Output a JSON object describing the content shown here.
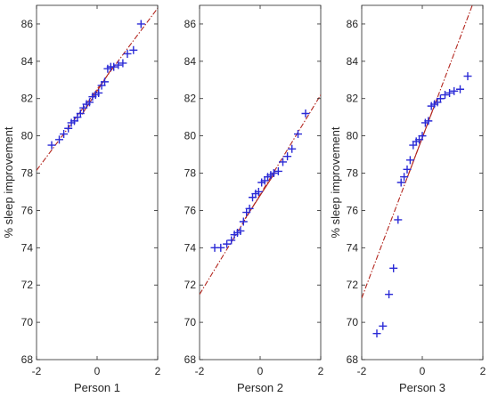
{
  "colors": {
    "marker": "#2a2ad6",
    "fit_line": "#b3261e",
    "axis": "#262626"
  },
  "chart_data": [
    {
      "type": "scatter",
      "title": "",
      "xlabel": "Person 1",
      "ylabel": "% sleep improvement",
      "xlim": [
        -2,
        2
      ],
      "ylim": [
        68,
        87
      ],
      "xticks": [
        -2,
        0,
        2
      ],
      "yticks": [
        68,
        70,
        72,
        74,
        76,
        78,
        80,
        82,
        84,
        86
      ],
      "grid": false,
      "marker": "plus",
      "points": [
        [
          -1.5,
          79.5
        ],
        [
          -1.25,
          79.8
        ],
        [
          -1.1,
          80.1
        ],
        [
          -0.95,
          80.4
        ],
        [
          -0.85,
          80.7
        ],
        [
          -0.75,
          80.8
        ],
        [
          -0.65,
          81.0
        ],
        [
          -0.55,
          81.2
        ],
        [
          -0.45,
          81.5
        ],
        [
          -0.35,
          81.7
        ],
        [
          -0.25,
          81.8
        ],
        [
          -0.15,
          82.1
        ],
        [
          -0.05,
          82.2
        ],
        [
          0.05,
          82.3
        ],
        [
          0.15,
          82.7
        ],
        [
          0.25,
          82.9
        ],
        [
          0.35,
          83.6
        ],
        [
          0.45,
          83.7
        ],
        [
          0.55,
          83.7
        ],
        [
          0.7,
          83.8
        ],
        [
          0.85,
          83.9
        ],
        [
          1.0,
          84.4
        ],
        [
          1.2,
          84.6
        ],
        [
          1.45,
          86.0
        ]
      ],
      "fit_lines": [
        {
          "style": "solid",
          "x": [
            -0.5,
            0.5
          ],
          "y": [
            81.15,
            83.65
          ]
        },
        {
          "style": "dashdot",
          "x": [
            -2.0,
            2.0
          ],
          "y": [
            78.15,
            86.85
          ]
        }
      ]
    },
    {
      "type": "scatter",
      "title": "",
      "xlabel": "Person 2",
      "ylabel": "",
      "xlim": [
        -2,
        2
      ],
      "ylim": [
        68,
        87
      ],
      "xticks": [
        -2,
        0,
        2
      ],
      "yticks": [
        68,
        70,
        72,
        74,
        76,
        78,
        80,
        82,
        84,
        86
      ],
      "grid": false,
      "marker": "plus",
      "points": [
        [
          -1.5,
          74.0
        ],
        [
          -1.3,
          74.0
        ],
        [
          -1.1,
          74.2
        ],
        [
          -0.95,
          74.4
        ],
        [
          -0.85,
          74.7
        ],
        [
          -0.75,
          74.8
        ],
        [
          -0.65,
          74.9
        ],
        [
          -0.55,
          75.4
        ],
        [
          -0.45,
          75.9
        ],
        [
          -0.35,
          76.1
        ],
        [
          -0.25,
          76.7
        ],
        [
          -0.15,
          76.9
        ],
        [
          -0.05,
          77.0
        ],
        [
          0.05,
          77.5
        ],
        [
          0.15,
          77.6
        ],
        [
          0.25,
          77.8
        ],
        [
          0.35,
          77.9
        ],
        [
          0.45,
          78.0
        ],
        [
          0.6,
          78.1
        ],
        [
          0.75,
          78.6
        ],
        [
          0.9,
          78.9
        ],
        [
          1.05,
          79.3
        ],
        [
          1.25,
          80.1
        ],
        [
          1.5,
          81.2
        ]
      ],
      "fit_lines": [
        {
          "style": "solid",
          "x": [
            -0.5,
            0.5
          ],
          "y": [
            75.55,
            78.05
          ]
        },
        {
          "style": "dashdot",
          "x": [
            -2.0,
            2.0
          ],
          "y": [
            71.5,
            82.2
          ]
        }
      ]
    },
    {
      "type": "scatter",
      "title": "",
      "xlabel": "Person 3",
      "ylabel": "% sleep improvement",
      "xlim": [
        -2,
        2
      ],
      "ylim": [
        68,
        87
      ],
      "xticks": [
        -2,
        0,
        2
      ],
      "yticks": [
        68,
        70,
        72,
        74,
        76,
        78,
        80,
        82,
        84,
        86
      ],
      "grid": false,
      "marker": "plus",
      "points": [
        [
          -1.5,
          69.4
        ],
        [
          -1.3,
          69.8
        ],
        [
          -1.1,
          71.5
        ],
        [
          -0.95,
          72.9
        ],
        [
          -0.8,
          75.5
        ],
        [
          -0.7,
          77.5
        ],
        [
          -0.6,
          77.8
        ],
        [
          -0.5,
          78.2
        ],
        [
          -0.4,
          78.7
        ],
        [
          -0.3,
          79.5
        ],
        [
          -0.2,
          79.7
        ],
        [
          -0.1,
          79.8
        ],
        [
          0.0,
          80.0
        ],
        [
          0.1,
          80.7
        ],
        [
          0.2,
          80.8
        ],
        [
          0.3,
          81.6
        ],
        [
          0.4,
          81.7
        ],
        [
          0.5,
          81.8
        ],
        [
          0.6,
          82.0
        ],
        [
          0.75,
          82.2
        ],
        [
          0.9,
          82.3
        ],
        [
          1.05,
          82.4
        ],
        [
          1.25,
          82.5
        ],
        [
          1.5,
          83.2
        ]
      ],
      "fit_lines": [
        {
          "style": "solid",
          "x": [
            -0.5,
            0.5
          ],
          "y": [
            77.75,
            82.05
          ]
        },
        {
          "style": "dashdot",
          "x": [
            -2.0,
            2.0
          ],
          "y": [
            71.3,
            88.5
          ]
        }
      ]
    }
  ]
}
